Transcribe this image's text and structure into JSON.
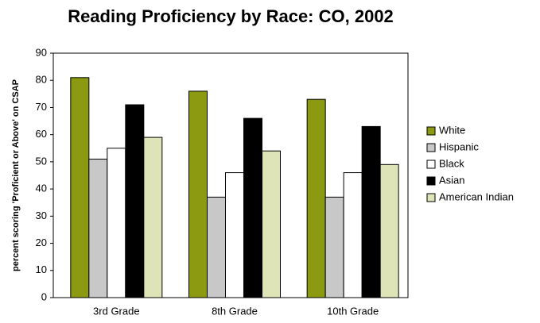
{
  "chart_data": {
    "type": "bar",
    "title": "Reading Proficiency by Race: CO, 2002",
    "y_label": "percent scoring 'Proficient or Above' on CSAP",
    "categories": [
      "3rd Grade",
      "8th Grade",
      "10th Grade"
    ],
    "series": [
      {
        "name": "White",
        "color": "#8b9a10",
        "values": [
          81,
          76,
          73
        ]
      },
      {
        "name": "Hispanic",
        "color": "#c8c8c8",
        "values": [
          51,
          37,
          37
        ]
      },
      {
        "name": "Black",
        "color": "#ffffff",
        "values": [
          55,
          46,
          46
        ]
      },
      {
        "name": "Asian",
        "color": "#000000",
        "values": [
          71,
          66,
          63
        ]
      },
      {
        "name": "American Indian",
        "color": "#dfe4b8",
        "values": [
          59,
          54,
          49
        ]
      }
    ],
    "ylim": [
      0,
      90
    ],
    "yticks": [
      0,
      10,
      20,
      30,
      40,
      50,
      60,
      70,
      80,
      90
    ],
    "legend": "right"
  }
}
